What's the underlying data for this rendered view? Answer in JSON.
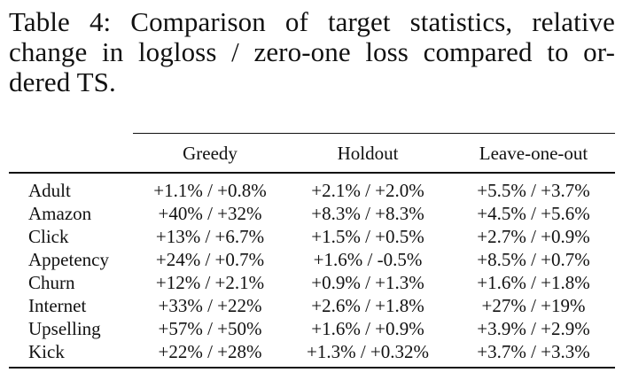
{
  "caption": {
    "line1": "Table 4:  Comparison of target statistics, relative",
    "line2": "change in logloss / zero-one loss compared to or-",
    "line3": "dered TS."
  },
  "table": {
    "headers": [
      "",
      "Greedy",
      "Holdout",
      "Leave-one-out"
    ],
    "rows": [
      {
        "name": "Adult",
        "greedy": "+1.1% / +0.8%",
        "holdout": "+2.1% / +2.0%",
        "loo": "+5.5% / +3.7%"
      },
      {
        "name": "Amazon",
        "greedy": "+40% / +32%",
        "holdout": "+8.3% / +8.3%",
        "loo": "+4.5% / +5.6%"
      },
      {
        "name": "Click",
        "greedy": "+13% / +6.7%",
        "holdout": "+1.5% / +0.5%",
        "loo": "+2.7% / +0.9%"
      },
      {
        "name": "Appetency",
        "greedy": "+24% / +0.7%",
        "holdout": "+1.6% / -0.5%",
        "loo": "+8.5% / +0.7%"
      },
      {
        "name": "Churn",
        "greedy": "+12% / +2.1%",
        "holdout": "+0.9% / +1.3%",
        "loo": "+1.6% / +1.8%"
      },
      {
        "name": "Internet",
        "greedy": "+33% / +22%",
        "holdout": "+2.6% / +1.8%",
        "loo": "+27% / +19%"
      },
      {
        "name": "Upselling",
        "greedy": "+57% / +50%",
        "holdout": "+1.6% / +0.9%",
        "loo": "+3.9% / +2.9%"
      },
      {
        "name": "Kick",
        "greedy": "+22% / +28%",
        "holdout": "+1.3% / +0.32%",
        "loo": "+3.7% / +3.3%"
      }
    ]
  }
}
